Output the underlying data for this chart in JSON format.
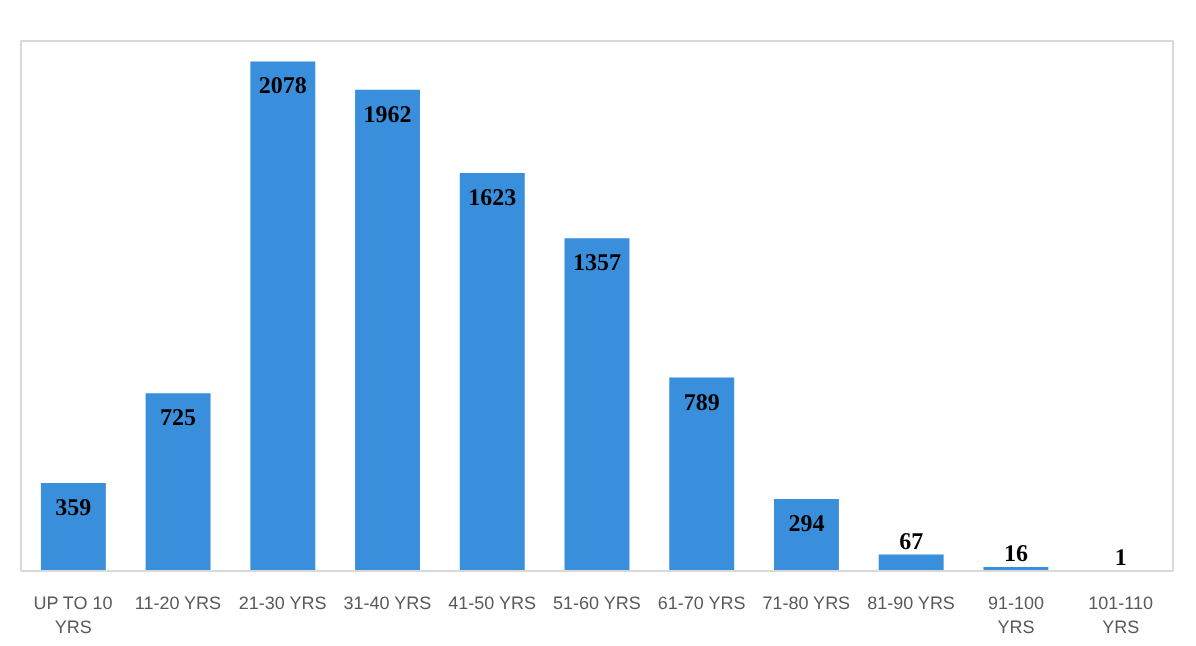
{
  "chart_data": {
    "type": "bar",
    "categories": [
      "UP TO 10 YRS",
      "11-20 YRS",
      "21-30 YRS",
      "31-40 YRS",
      "41-50 YRS",
      "51-60 YRS",
      "61-70 YRS",
      "71-80 YRS",
      "81-90 YRS",
      "91-100 YRS",
      "101-110 YRS"
    ],
    "values": [
      359,
      725,
      2078,
      1962,
      1623,
      1357,
      789,
      294,
      67,
      16,
      1
    ],
    "color": "#3a8fdc",
    "data_labels": true,
    "grid": false
  }
}
